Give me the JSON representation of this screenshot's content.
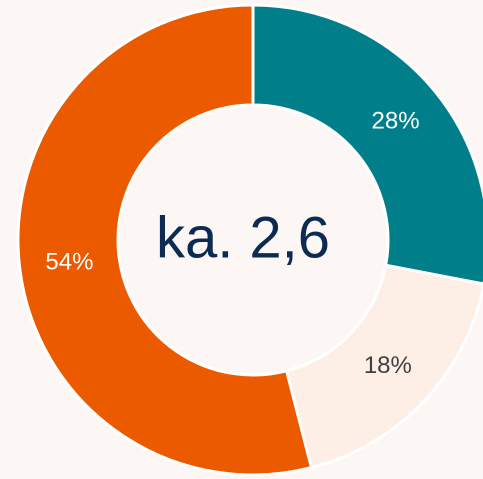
{
  "chart_data": {
    "type": "donut",
    "values": [
      28,
      18,
      54
    ],
    "value_labels": [
      "28%",
      "18%",
      "54%"
    ],
    "colors": [
      "#007f8a",
      "#fdeee6",
      "#ec5a00"
    ],
    "label_colors": [
      "#ffffff",
      "#404040",
      "#ffffff"
    ],
    "center_text": "ka. 2,6"
  }
}
